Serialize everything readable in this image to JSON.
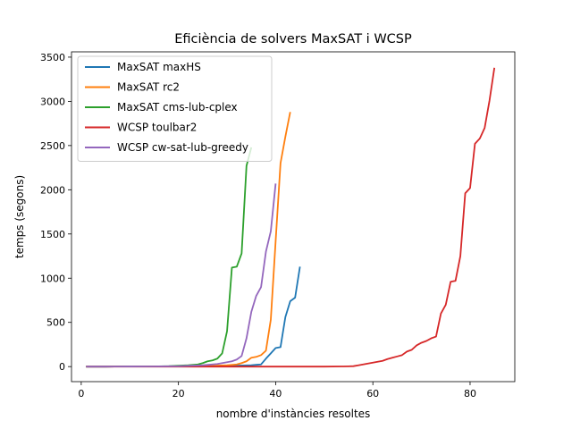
{
  "chart_data": {
    "type": "line",
    "title": "Eficiència de solvers MaxSAT i WCSP",
    "xlabel": "nombre d'instàncies resoltes",
    "ylabel": "temps (segons)",
    "xlim": [
      -2,
      89.2
    ],
    "ylim": [
      -170,
      3560
    ],
    "xticks": [
      0,
      20,
      40,
      60,
      80
    ],
    "yticks": [
      0,
      500,
      1000,
      1500,
      2000,
      2500,
      3000,
      3500
    ],
    "grid": false,
    "legend_position": "top-left",
    "series": [
      {
        "name": "MaxSAT maxHS",
        "color": "#1f77b4",
        "x": [
          1,
          5,
          10,
          15,
          20,
          25,
          30,
          35,
          36,
          37,
          38,
          39,
          40,
          41,
          42,
          43,
          44,
          45
        ],
        "y": [
          0,
          0,
          1,
          1,
          2,
          4,
          8,
          15,
          20,
          25,
          90,
          150,
          210,
          220,
          560,
          740,
          780,
          1130
        ]
      },
      {
        "name": "MaxSAT rc2",
        "color": "#ff7f0e",
        "x": [
          1,
          5,
          10,
          15,
          20,
          25,
          30,
          32,
          33,
          34,
          35,
          36,
          37,
          38,
          39,
          40,
          41,
          42,
          43
        ],
        "y": [
          0,
          0,
          1,
          1,
          3,
          6,
          15,
          25,
          40,
          60,
          100,
          110,
          130,
          180,
          530,
          1420,
          2300,
          2600,
          2880
        ]
      },
      {
        "name": "MaxSAT cms-lub-cplex",
        "color": "#2ca02c",
        "x": [
          1,
          5,
          10,
          15,
          18,
          20,
          22,
          24,
          25,
          26,
          27,
          28,
          29,
          30,
          31,
          32,
          33,
          34,
          35
        ],
        "y": [
          0,
          0,
          1,
          2,
          5,
          10,
          15,
          25,
          40,
          60,
          70,
          90,
          150,
          400,
          1120,
          1130,
          1280,
          2270,
          2480
        ]
      },
      {
        "name": "WCSP toulbar2",
        "color": "#d62728",
        "x": [
          1,
          10,
          20,
          30,
          40,
          50,
          54,
          55,
          56,
          57,
          58,
          59,
          60,
          61,
          62,
          63,
          64,
          65,
          66,
          67,
          68,
          69,
          70,
          71,
          72,
          73,
          74,
          75,
          76,
          77,
          78,
          79,
          80,
          81,
          82,
          83,
          84,
          85
        ],
        "y": [
          0,
          0,
          0,
          0,
          0,
          0,
          2,
          3,
          5,
          15,
          25,
          35,
          45,
          55,
          65,
          85,
          100,
          115,
          130,
          170,
          190,
          240,
          270,
          290,
          320,
          340,
          600,
          700,
          960,
          970,
          1250,
          1960,
          2020,
          2520,
          2580,
          2700,
          3010,
          3380
        ]
      },
      {
        "name": "WCSP cw-sat-lub-greedy",
        "color": "#9467bd",
        "x": [
          1,
          5,
          10,
          15,
          20,
          25,
          28,
          30,
          31,
          32,
          33,
          34,
          35,
          36,
          37,
          38,
          39,
          40
        ],
        "y": [
          0,
          0,
          1,
          2,
          5,
          15,
          30,
          50,
          60,
          80,
          120,
          320,
          620,
          800,
          900,
          1300,
          1530,
          2070
        ]
      }
    ]
  }
}
